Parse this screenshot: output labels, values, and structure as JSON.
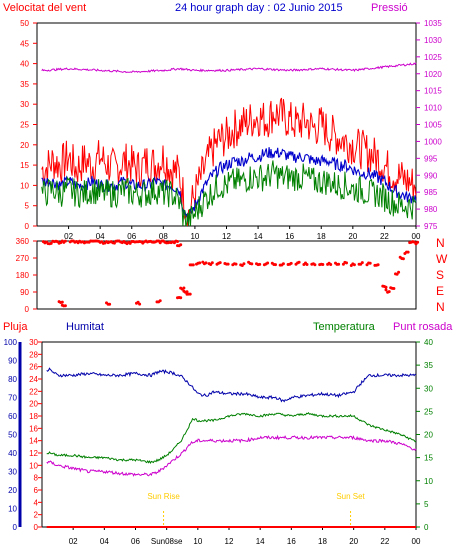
{
  "title": "24 hour graph day : 02 Junio 2015",
  "colors": {
    "wind": "#ff0000",
    "gust_avg": "#0000cc",
    "wind_avg": "#008000",
    "pressure": "#cc00cc",
    "frame": "#000000",
    "rain": "#ff0000",
    "humidity": "#0000aa",
    "temp": "#008000",
    "dew": "#cc00cc",
    "sun": "#ffcc00"
  },
  "chart_data": [
    {
      "type": "line",
      "labels": {
        "left": "Velocitat del vent",
        "right": "Pressió"
      },
      "x_ticks": [
        "02",
        "04",
        "06",
        "08",
        "10",
        "12",
        "14",
        "16",
        "18",
        "20",
        "22",
        "00"
      ],
      "y_left_ticks": [
        "0",
        "5",
        "10",
        "15",
        "20",
        "25",
        "30",
        "35",
        "40",
        "45",
        "50"
      ],
      "y_right_ticks": [
        "975",
        "980",
        "985",
        "990",
        "995",
        "1000",
        "1005",
        "1010",
        "1015",
        "1020",
        "1025",
        "1030",
        "1035"
      ],
      "ylim_left": [
        0,
        50
      ],
      "ylim_right": [
        975,
        1035
      ],
      "xlim": [
        0,
        24
      ],
      "series": [
        {
          "name": "Velocitat del vent",
          "axis": "left",
          "x": [
            0.5,
            1,
            1.5,
            2,
            2.5,
            3,
            3.5,
            4,
            4.5,
            5,
            5.5,
            6,
            6.5,
            7,
            7.5,
            8,
            8.5,
            9,
            9.3,
            9.6,
            10,
            10.5,
            11,
            11.5,
            12,
            12.5,
            13,
            13.5,
            14,
            14.5,
            15,
            15.5,
            16,
            16.5,
            17,
            17.5,
            18,
            18.5,
            19,
            19.5,
            20,
            20.5,
            21,
            21.5,
            22,
            22.5,
            23,
            23.5,
            24
          ],
          "values": [
            14,
            16,
            15,
            17,
            14,
            16,
            15,
            17,
            15,
            14,
            16,
            15,
            14,
            16,
            15,
            17,
            14,
            13,
            7,
            3,
            8,
            13,
            18,
            21,
            22,
            24,
            25,
            26,
            27,
            26,
            28,
            27,
            26,
            25,
            26,
            24,
            25,
            23,
            22,
            21,
            20,
            19,
            18,
            17,
            15,
            13,
            12,
            11,
            10
          ]
        },
        {
          "name": "",
          "axis": "left",
          "x": [
            0.5,
            1,
            1.5,
            2,
            2.5,
            3,
            3.5,
            4,
            4.5,
            5,
            5.5,
            6,
            6.5,
            7,
            7.5,
            8,
            8.5,
            9,
            9.3,
            9.6,
            10,
            10.5,
            11,
            11.5,
            12,
            12.5,
            13,
            13.5,
            14,
            14.5,
            15,
            15.5,
            16,
            16.5,
            17,
            17.5,
            18,
            18.5,
            19,
            19.5,
            20,
            20.5,
            21,
            21.5,
            22,
            22.5,
            23,
            23.5,
            24
          ],
          "values": [
            11,
            11,
            10,
            11,
            10,
            10,
            11,
            10,
            10,
            10,
            11,
            10,
            10,
            10,
            11,
            10,
            10,
            9,
            4,
            2,
            5,
            9,
            12,
            14,
            15,
            16,
            16,
            17,
            17,
            18,
            18,
            18,
            17,
            17,
            17,
            16,
            16,
            16,
            15,
            15,
            14,
            13,
            13,
            12,
            11,
            9,
            8,
            7,
            7
          ]
        },
        {
          "name": "",
          "axis": "left",
          "x": [
            0.5,
            1,
            1.5,
            2,
            2.5,
            3,
            3.5,
            4,
            4.5,
            5,
            5.5,
            6,
            6.5,
            7,
            7.5,
            8,
            8.5,
            9,
            9.3,
            9.6,
            10,
            10.5,
            11,
            11.5,
            12,
            12.5,
            13,
            13.5,
            14,
            14.5,
            15,
            15.5,
            16,
            16.5,
            17,
            17.5,
            18,
            18.5,
            19,
            19.5,
            20,
            20.5,
            21,
            21.5,
            22,
            22.5,
            23,
            23.5,
            24
          ],
          "values": [
            8,
            9,
            8,
            9,
            8,
            8,
            9,
            8,
            8,
            8,
            9,
            8,
            8,
            8,
            9,
            8,
            8,
            6,
            2,
            1,
            3,
            6,
            8,
            10,
            10,
            11,
            11,
            12,
            12,
            12,
            13,
            12,
            12,
            12,
            12,
            11,
            11,
            11,
            10,
            10,
            9,
            9,
            8,
            8,
            7,
            6,
            5,
            5,
            5
          ]
        },
        {
          "name": "Pressió",
          "axis": "right",
          "x": [
            0.5,
            2,
            4,
            6,
            8,
            9,
            10,
            12,
            14,
            16,
            18,
            20,
            22,
            24
          ],
          "values": [
            1021,
            1021.5,
            1021,
            1020.5,
            1021,
            1021.5,
            1021,
            1021,
            1021.5,
            1021,
            1021.5,
            1021,
            1022,
            1023
          ]
        }
      ]
    },
    {
      "type": "scatter",
      "labels": {
        "right_compass": [
          "N",
          "W",
          "S",
          "E",
          "N"
        ]
      },
      "y_ticks": [
        "0",
        "90",
        "180",
        "270",
        "360"
      ],
      "ylim": [
        0,
        360
      ],
      "xlim": [
        0,
        24
      ],
      "series": [
        {
          "name": "",
          "x": [
            0.5,
            0.8,
            1.1,
            1.4,
            1.7,
            2.2,
            2.5,
            2.8,
            3.1,
            3.4,
            3.7,
            4.0,
            4.3,
            4.6,
            4.9,
            5.2,
            5.5,
            5.8,
            6.1,
            6.4,
            6.7,
            7.0,
            7.3,
            7.6,
            7.9,
            8.2,
            8.5,
            8.8,
            9.0,
            1.5,
            1.7,
            4.5,
            6.4,
            7.7,
            9.0,
            9.2,
            9.4,
            9.6,
            9.8,
            10.2,
            10.6,
            11.0,
            11.5,
            12.0,
            12.5,
            13.0,
            13.5,
            14.0,
            14.5,
            15.0,
            15.5,
            16.0,
            16.5,
            17.0,
            17.5,
            18.0,
            18.5,
            19.0,
            19.5,
            20.0,
            20.5,
            21.0,
            21.5,
            22.0,
            22.2,
            22.5,
            22.8,
            23.1,
            23.4,
            23.7,
            24.0
          ],
          "values": [
            355,
            350,
            355,
            352,
            358,
            358,
            355,
            357,
            350,
            355,
            358,
            356,
            353,
            357,
            355,
            358,
            355,
            352,
            356,
            358,
            354,
            357,
            355,
            358,
            356,
            353,
            357,
            355,
            340,
            40,
            20,
            30,
            30,
            40,
            60,
            110,
            90,
            75,
            230,
            240,
            245,
            240,
            242,
            238,
            240,
            236,
            242,
            240,
            238,
            241,
            237,
            240,
            242,
            238,
            240,
            236,
            240,
            238,
            242,
            236,
            240,
            238,
            235,
            120,
            95,
            110,
            190,
            270,
            300,
            355,
            350
          ]
        }
      ]
    },
    {
      "type": "line",
      "labels": {
        "rain": "Pluja",
        "humidity": "Humitat",
        "temp": "Temperatura",
        "dew": "Punt rosada"
      },
      "x_ticks": [
        "02",
        "04",
        "06",
        "Sun08se",
        "10",
        "12",
        "14",
        "16",
        "18",
        "20",
        "22",
        "00"
      ],
      "y_humidity_ticks": [
        "0",
        "10",
        "20",
        "30",
        "40",
        "50",
        "60",
        "70",
        "80",
        "90",
        "100"
      ],
      "y_temp_ticks": [
        "0",
        "2",
        "4",
        "6",
        "8",
        "10",
        "12",
        "14",
        "16",
        "18",
        "20",
        "22",
        "24",
        "26",
        "28",
        "30"
      ],
      "y_right_ticks": [
        "0",
        "5",
        "10",
        "15",
        "20",
        "25",
        "30",
        "35",
        "40"
      ],
      "ylim_humidity": [
        0,
        100
      ],
      "ylim_temp": [
        0,
        30
      ],
      "ylim_right": [
        0,
        40
      ],
      "xlim": [
        0,
        24
      ],
      "annotations": [
        {
          "text": "Sun Rise",
          "x": 7.8
        },
        {
          "text": "Sun Set",
          "x": 19.8
        }
      ],
      "series": [
        {
          "name": "Humitat",
          "axis": "humidity",
          "x": [
            0.5,
            1,
            2,
            3,
            4,
            5,
            6,
            7,
            7.5,
            8,
            8.5,
            9,
            9.5,
            10,
            10.5,
            11,
            12,
            13,
            14,
            15,
            15.5,
            16,
            17,
            18,
            19,
            20,
            20.5,
            21,
            22,
            23,
            24
          ],
          "values": [
            85,
            82,
            82,
            83,
            82,
            82,
            83,
            82,
            84,
            84,
            83,
            81,
            77,
            72,
            71,
            73,
            72,
            72,
            70,
            70,
            68,
            70,
            71,
            72,
            71,
            73,
            78,
            82,
            82,
            82,
            82
          ]
        },
        {
          "name": "Temperatura",
          "axis": "right",
          "x": [
            0.5,
            1,
            2,
            3,
            4,
            5,
            6,
            7,
            7.5,
            8,
            8.5,
            9,
            9.3,
            9.7,
            10,
            11,
            12,
            13,
            14,
            15,
            16,
            17,
            18,
            19,
            20,
            20.5,
            21,
            22,
            23,
            24
          ],
          "values": [
            16,
            15.5,
            15.5,
            15,
            15,
            14.5,
            14.5,
            14,
            14.5,
            15.5,
            17,
            19,
            21,
            23.5,
            23,
            23,
            24,
            24.5,
            24,
            24.5,
            24,
            24.5,
            24,
            24,
            24,
            23,
            22,
            21,
            20,
            18.5
          ]
        },
        {
          "name": "Punt rosada",
          "axis": "temp",
          "x": [
            0.5,
            1,
            2,
            3,
            4,
            5,
            6,
            7,
            7.5,
            8,
            8.5,
            9,
            9.5,
            10,
            11,
            12,
            13,
            14,
            15,
            16,
            17,
            18,
            19,
            20,
            21,
            22,
            23,
            24
          ],
          "values": [
            10.5,
            10,
            9.5,
            9,
            9,
            8.7,
            8.5,
            8.5,
            9,
            10,
            11,
            12,
            13.5,
            14,
            14,
            14,
            14,
            14.5,
            14.5,
            14.5,
            14.5,
            14.5,
            14.5,
            14.5,
            14,
            14,
            13.5,
            12.5
          ]
        },
        {
          "name": "Pluja",
          "axis": "temp",
          "x": [
            0,
            24
          ],
          "values": [
            0,
            0
          ]
        }
      ]
    }
  ]
}
